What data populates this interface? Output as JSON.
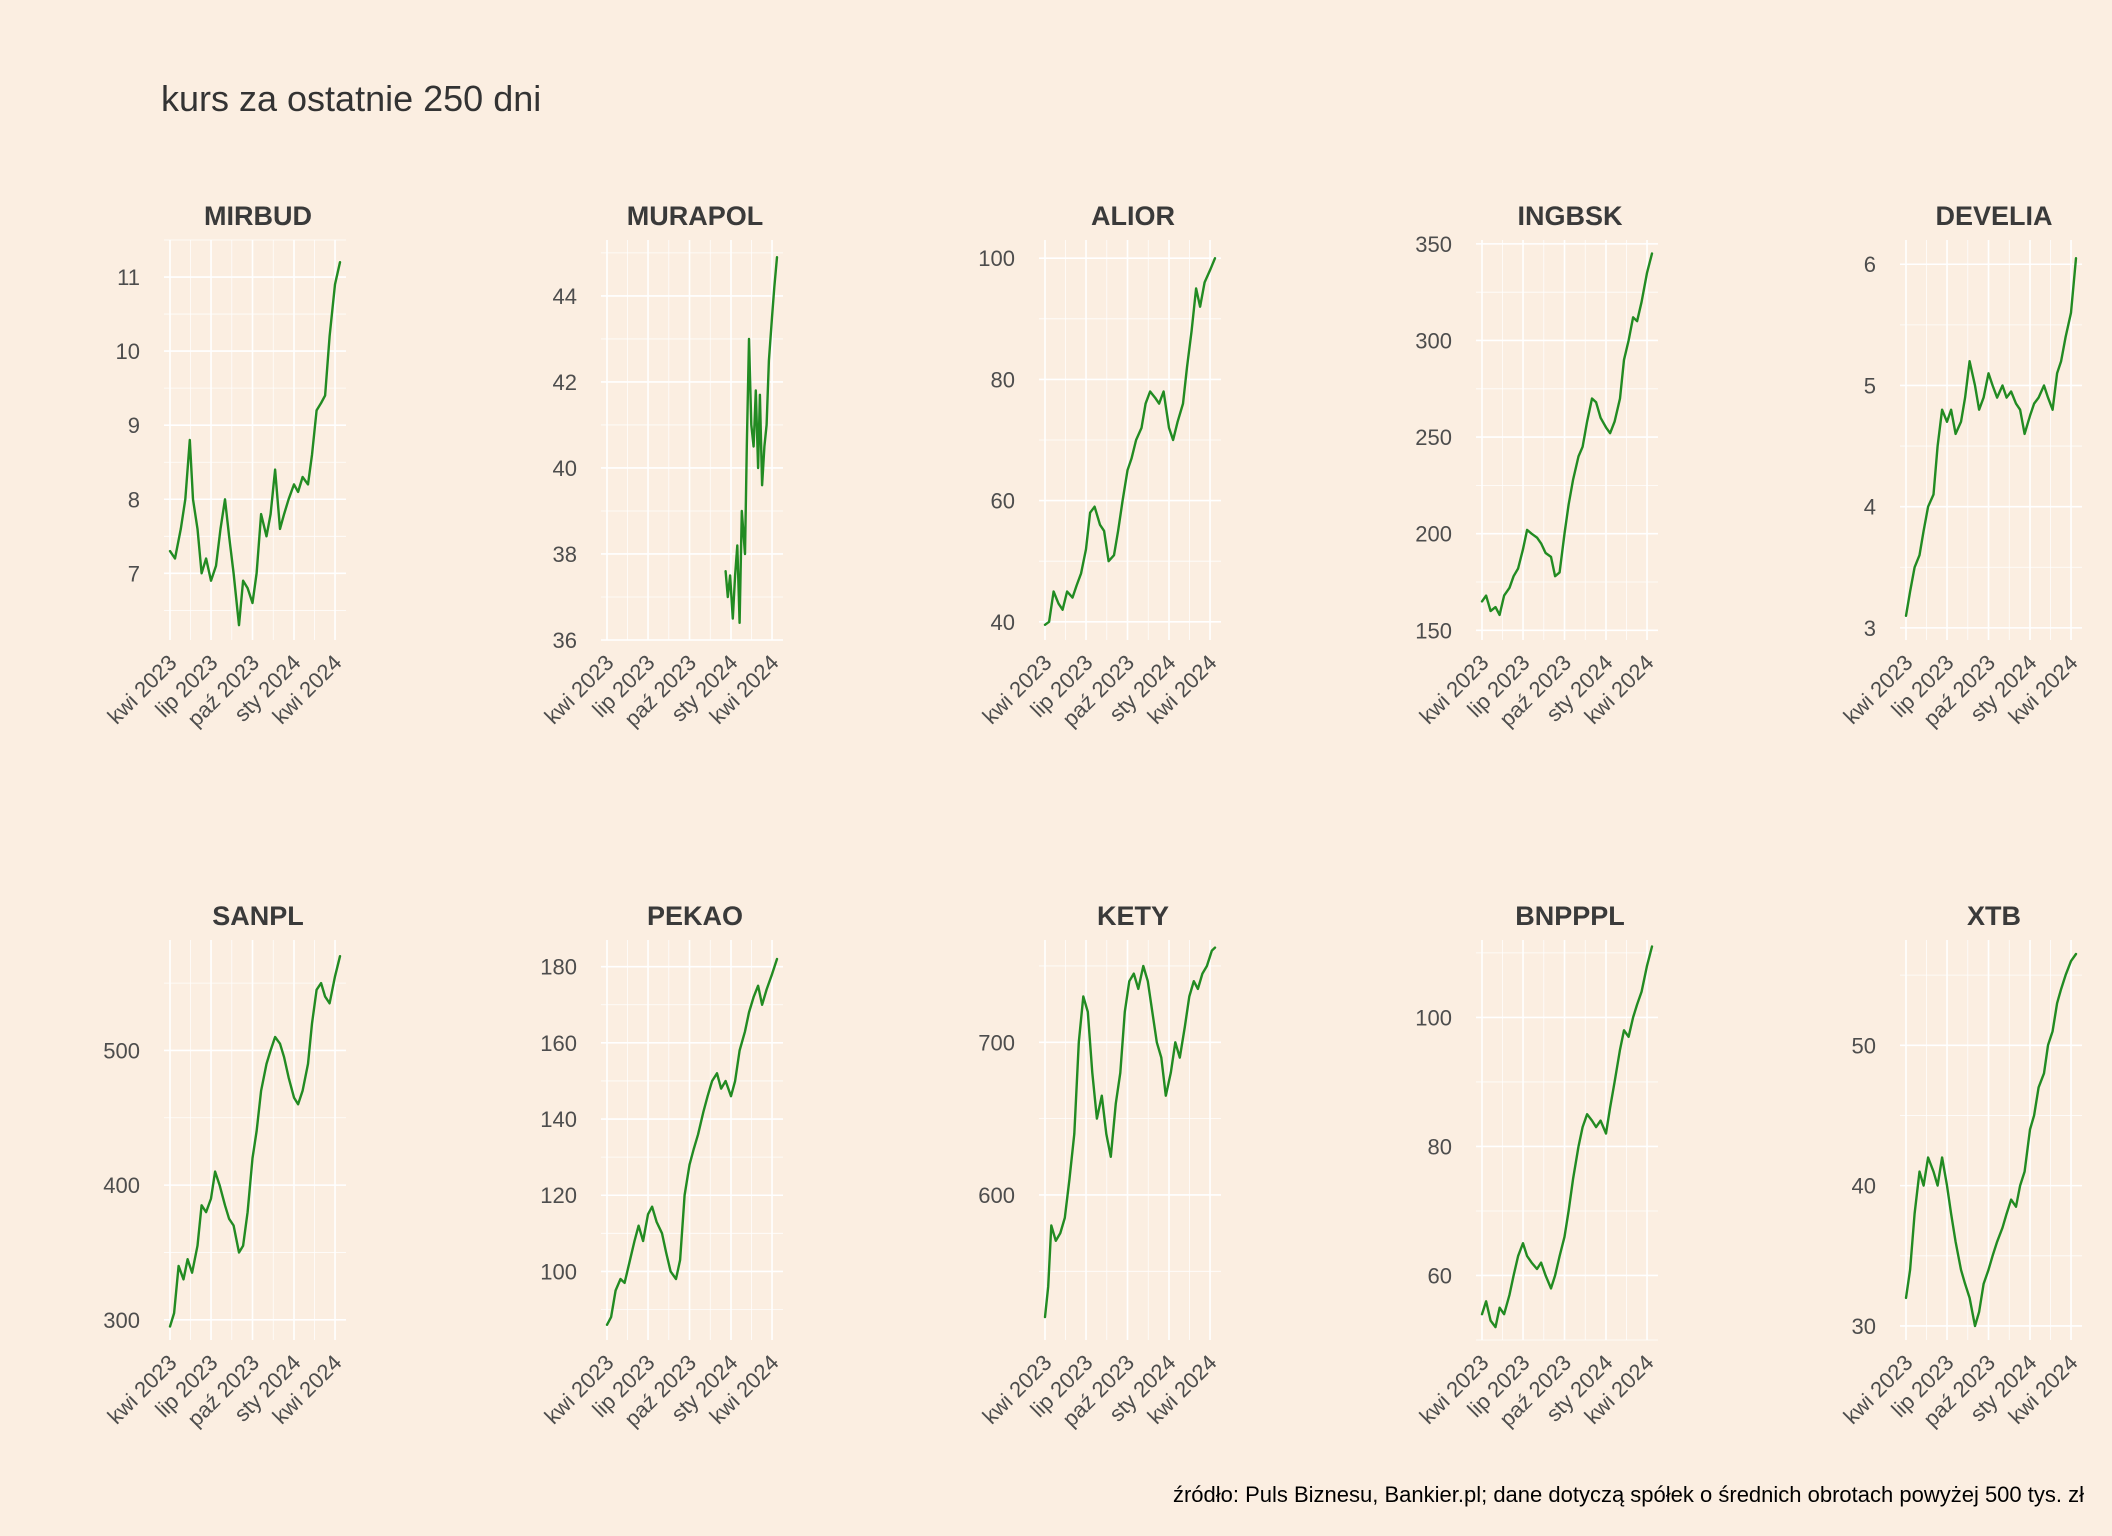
{
  "title": "kurs za ostatnie 250 dni",
  "caption": "źródło: Puls Biznesu, Bankier.pl; dane dotyczą spółek o średnich obrotach powyżej 500 tys. zł",
  "line_color": "#228b22",
  "x_tick_labels": [
    "kwi 2023",
    "lip 2023",
    "paź 2023",
    "sty 2024",
    "kwi 2024"
  ],
  "chart_data": [
    {
      "type": "line",
      "title": "MIRBUD",
      "x_range": [
        "2023-04-01",
        "2024-04-12"
      ],
      "ylim": [
        6.1,
        11.5
      ],
      "yticks": [
        7,
        8,
        9,
        10,
        11
      ],
      "x": [
        "2023-04-01",
        "2023-04-12",
        "2023-04-25",
        "2023-05-05",
        "2023-05-15",
        "2023-05-22",
        "2023-06-01",
        "2023-06-10",
        "2023-06-20",
        "2023-07-01",
        "2023-07-12",
        "2023-07-22",
        "2023-08-01",
        "2023-08-10",
        "2023-08-20",
        "2023-09-01",
        "2023-09-10",
        "2023-09-20",
        "2023-10-01",
        "2023-10-10",
        "2023-10-20",
        "2023-11-01",
        "2023-11-10",
        "2023-11-20",
        "2023-12-01",
        "2023-12-10",
        "2023-12-20",
        "2024-01-01",
        "2024-01-10",
        "2024-01-20",
        "2024-02-01",
        "2024-02-10",
        "2024-02-20",
        "2024-03-01",
        "2024-03-10",
        "2024-03-20",
        "2024-04-01",
        "2024-04-12"
      ],
      "values": [
        7.3,
        7.2,
        7.6,
        8.0,
        8.8,
        8.0,
        7.6,
        7.0,
        7.2,
        6.9,
        7.1,
        7.6,
        8.0,
        7.5,
        7.0,
        6.3,
        6.9,
        6.8,
        6.6,
        7.0,
        7.8,
        7.5,
        7.8,
        8.4,
        7.6,
        7.8,
        8.0,
        8.2,
        8.1,
        8.3,
        8.2,
        8.6,
        9.2,
        9.3,
        9.4,
        10.2,
        10.9,
        11.2
      ]
    },
    {
      "type": "line",
      "title": "MURAPOL",
      "x_range": [
        "2023-04-01",
        "2024-04-12"
      ],
      "ylim": [
        36,
        45.3
      ],
      "yticks": [
        36,
        38,
        40,
        42,
        44
      ],
      "x": [
        "2023-12-20",
        "2023-12-25",
        "2023-12-30",
        "2024-01-05",
        "2024-01-10",
        "2024-01-15",
        "2024-01-20",
        "2024-01-25",
        "2024-02-01",
        "2024-02-05",
        "2024-02-10",
        "2024-02-15",
        "2024-02-20",
        "2024-02-25",
        "2024-03-01",
        "2024-03-05",
        "2024-03-10",
        "2024-03-15",
        "2024-03-20",
        "2024-03-25",
        "2024-04-01",
        "2024-04-06",
        "2024-04-12"
      ],
      "values": [
        37.6,
        37.0,
        37.5,
        36.5,
        37.5,
        38.2,
        36.4,
        39.0,
        38.0,
        40.5,
        43.0,
        41.0,
        40.5,
        41.8,
        40.0,
        41.7,
        39.6,
        40.5,
        41.0,
        42.5,
        43.5,
        44.2,
        44.9
      ]
    },
    {
      "type": "line",
      "title": "ALIOR",
      "x_range": [
        "2023-04-01",
        "2024-04-12"
      ],
      "ylim": [
        37,
        103
      ],
      "yticks": [
        40,
        60,
        80,
        100
      ],
      "x": [
        "2023-04-01",
        "2023-04-10",
        "2023-04-20",
        "2023-05-01",
        "2023-05-10",
        "2023-05-20",
        "2023-06-01",
        "2023-06-10",
        "2023-06-20",
        "2023-07-01",
        "2023-07-10",
        "2023-07-20",
        "2023-08-01",
        "2023-08-10",
        "2023-08-20",
        "2023-09-01",
        "2023-09-10",
        "2023-09-20",
        "2023-10-01",
        "2023-10-10",
        "2023-10-20",
        "2023-11-01",
        "2023-11-10",
        "2023-11-20",
        "2023-12-01",
        "2023-12-10",
        "2023-12-20",
        "2024-01-01",
        "2024-01-10",
        "2024-01-20",
        "2024-02-01",
        "2024-02-10",
        "2024-02-20",
        "2024-03-01",
        "2024-03-10",
        "2024-03-20",
        "2024-04-01",
        "2024-04-12"
      ],
      "values": [
        39.5,
        40,
        45,
        43,
        42,
        45,
        44,
        46,
        48,
        52,
        58,
        59,
        56,
        55,
        50,
        51,
        55,
        60,
        65,
        67,
        70,
        72,
        76,
        78,
        77,
        76,
        78,
        72,
        70,
        73,
        76,
        82,
        88,
        95,
        92,
        96,
        98,
        100
      ]
    },
    {
      "type": "line",
      "title": "INGBSK",
      "x_range": [
        "2023-04-01",
        "2024-04-12"
      ],
      "ylim": [
        145,
        352
      ],
      "yticks": [
        150,
        200,
        250,
        300,
        350
      ],
      "x": [
        "2023-04-01",
        "2023-04-10",
        "2023-04-20",
        "2023-05-01",
        "2023-05-10",
        "2023-05-20",
        "2023-06-01",
        "2023-06-10",
        "2023-06-20",
        "2023-07-01",
        "2023-07-10",
        "2023-07-20",
        "2023-08-01",
        "2023-08-10",
        "2023-08-20",
        "2023-09-01",
        "2023-09-10",
        "2023-09-20",
        "2023-10-01",
        "2023-10-10",
        "2023-10-20",
        "2023-11-01",
        "2023-11-10",
        "2023-11-20",
        "2023-12-01",
        "2023-12-10",
        "2023-12-20",
        "2024-01-01",
        "2024-01-10",
        "2024-01-20",
        "2024-02-01",
        "2024-02-10",
        "2024-02-20",
        "2024-03-01",
        "2024-03-10",
        "2024-03-20",
        "2024-04-01",
        "2024-04-12"
      ],
      "values": [
        165,
        168,
        160,
        162,
        158,
        168,
        172,
        178,
        182,
        192,
        202,
        200,
        198,
        195,
        190,
        188,
        178,
        180,
        200,
        215,
        228,
        240,
        245,
        258,
        270,
        268,
        260,
        255,
        252,
        258,
        270,
        290,
        300,
        312,
        310,
        320,
        335,
        345
      ]
    },
    {
      "type": "line",
      "title": "DEVELIA",
      "x_range": [
        "2023-04-01",
        "2024-04-12"
      ],
      "ylim": [
        2.9,
        6.2
      ],
      "yticks": [
        3,
        4,
        5,
        6
      ],
      "x": [
        "2023-04-01",
        "2023-04-10",
        "2023-04-20",
        "2023-05-01",
        "2023-05-10",
        "2023-05-20",
        "2023-06-01",
        "2023-06-10",
        "2023-06-20",
        "2023-07-01",
        "2023-07-10",
        "2023-07-20",
        "2023-08-01",
        "2023-08-10",
        "2023-08-20",
        "2023-09-01",
        "2023-09-10",
        "2023-09-20",
        "2023-10-01",
        "2023-10-10",
        "2023-10-20",
        "2023-11-01",
        "2023-11-10",
        "2023-11-20",
        "2023-12-01",
        "2023-12-10",
        "2023-12-20",
        "2024-01-01",
        "2024-01-10",
        "2024-01-20",
        "2024-02-01",
        "2024-02-10",
        "2024-02-20",
        "2024-03-01",
        "2024-03-10",
        "2024-03-20",
        "2024-04-01",
        "2024-04-12"
      ],
      "values": [
        3.1,
        3.3,
        3.5,
        3.6,
        3.8,
        4.0,
        4.1,
        4.5,
        4.8,
        4.7,
        4.8,
        4.6,
        4.7,
        4.9,
        5.2,
        5.0,
        4.8,
        4.9,
        5.1,
        5.0,
        4.9,
        5.0,
        4.9,
        4.95,
        4.85,
        4.8,
        4.6,
        4.75,
        4.85,
        4.9,
        5.0,
        4.9,
        4.8,
        5.1,
        5.2,
        5.4,
        5.6,
        6.05
      ]
    },
    {
      "type": "line",
      "title": "SANPL",
      "x_range": [
        "2023-04-01",
        "2024-04-12"
      ],
      "ylim": [
        285,
        582
      ],
      "yticks": [
        300,
        400,
        500
      ],
      "x": [
        "2023-04-01",
        "2023-04-10",
        "2023-04-20",
        "2023-05-01",
        "2023-05-10",
        "2023-05-20",
        "2023-06-01",
        "2023-06-10",
        "2023-06-20",
        "2023-07-01",
        "2023-07-10",
        "2023-07-20",
        "2023-08-01",
        "2023-08-10",
        "2023-08-20",
        "2023-09-01",
        "2023-09-10",
        "2023-09-20",
        "2023-10-01",
        "2023-10-10",
        "2023-10-20",
        "2023-11-01",
        "2023-11-10",
        "2023-11-20",
        "2023-12-01",
        "2023-12-10",
        "2023-12-20",
        "2024-01-01",
        "2024-01-10",
        "2024-01-20",
        "2024-02-01",
        "2024-02-10",
        "2024-02-20",
        "2024-03-01",
        "2024-03-10",
        "2024-03-20",
        "2024-04-01",
        "2024-04-12"
      ],
      "values": [
        295,
        305,
        340,
        330,
        345,
        335,
        355,
        385,
        380,
        390,
        410,
        400,
        385,
        375,
        370,
        350,
        355,
        380,
        420,
        440,
        470,
        490,
        500,
        510,
        505,
        495,
        480,
        465,
        460,
        470,
        490,
        520,
        545,
        550,
        540,
        535,
        555,
        570
      ]
    },
    {
      "type": "line",
      "title": "PEKAO",
      "x_range": [
        "2023-04-01",
        "2024-04-12"
      ],
      "ylim": [
        82,
        187
      ],
      "yticks": [
        100,
        120,
        140,
        160,
        180
      ],
      "x": [
        "2023-04-01",
        "2023-04-10",
        "2023-04-20",
        "2023-05-01",
        "2023-05-10",
        "2023-05-20",
        "2023-06-01",
        "2023-06-10",
        "2023-06-20",
        "2023-07-01",
        "2023-07-10",
        "2023-07-20",
        "2023-08-01",
        "2023-08-10",
        "2023-08-20",
        "2023-09-01",
        "2023-09-10",
        "2023-09-20",
        "2023-10-01",
        "2023-10-10",
        "2023-10-20",
        "2023-11-01",
        "2023-11-10",
        "2023-11-20",
        "2023-12-01",
        "2023-12-10",
        "2023-12-20",
        "2024-01-01",
        "2024-01-10",
        "2024-01-20",
        "2024-02-01",
        "2024-02-10",
        "2024-02-20",
        "2024-03-01",
        "2024-03-10",
        "2024-03-20",
        "2024-04-01",
        "2024-04-12"
      ],
      "values": [
        86,
        88,
        95,
        98,
        97,
        102,
        108,
        112,
        108,
        115,
        117,
        113,
        110,
        105,
        100,
        98,
        103,
        120,
        128,
        132,
        136,
        142,
        146,
        150,
        152,
        148,
        150,
        146,
        150,
        158,
        163,
        168,
        172,
        175,
        170,
        174,
        178,
        182
      ]
    },
    {
      "type": "line",
      "title": "KETY",
      "x_range": [
        "2023-04-01",
        "2024-04-12"
      ],
      "ylim": [
        505,
        767
      ],
      "yticks": [
        600,
        700
      ],
      "x": [
        "2023-04-01",
        "2023-04-08",
        "2023-04-15",
        "2023-04-25",
        "2023-05-05",
        "2023-05-15",
        "2023-05-25",
        "2023-06-05",
        "2023-06-15",
        "2023-06-25",
        "2023-07-05",
        "2023-07-15",
        "2023-07-25",
        "2023-08-05",
        "2023-08-15",
        "2023-08-25",
        "2023-09-05",
        "2023-09-15",
        "2023-09-25",
        "2023-10-05",
        "2023-10-15",
        "2023-10-25",
        "2023-11-05",
        "2023-11-15",
        "2023-11-25",
        "2023-12-05",
        "2023-12-15",
        "2023-12-25",
        "2024-01-05",
        "2024-01-15",
        "2024-01-25",
        "2024-02-05",
        "2024-02-15",
        "2024-02-25",
        "2024-03-05",
        "2024-03-15",
        "2024-03-25",
        "2024-04-05",
        "2024-04-12"
      ],
      "values": [
        520,
        540,
        580,
        570,
        575,
        585,
        610,
        640,
        700,
        730,
        720,
        680,
        650,
        665,
        640,
        625,
        660,
        680,
        720,
        740,
        745,
        735,
        750,
        740,
        720,
        700,
        690,
        665,
        680,
        700,
        690,
        710,
        730,
        740,
        735,
        745,
        750,
        760,
        762
      ]
    },
    {
      "type": "line",
      "title": "BNPPPL",
      "x_range": [
        "2023-04-01",
        "2024-04-12"
      ],
      "ylim": [
        50,
        112
      ],
      "yticks": [
        60,
        80,
        100
      ],
      "x": [
        "2023-04-01",
        "2023-04-10",
        "2023-04-20",
        "2023-05-01",
        "2023-05-10",
        "2023-05-20",
        "2023-06-01",
        "2023-06-10",
        "2023-06-20",
        "2023-07-01",
        "2023-07-10",
        "2023-07-20",
        "2023-08-01",
        "2023-08-10",
        "2023-08-20",
        "2023-09-01",
        "2023-09-10",
        "2023-09-20",
        "2023-10-01",
        "2023-10-10",
        "2023-10-20",
        "2023-11-01",
        "2023-11-10",
        "2023-11-20",
        "2023-12-01",
        "2023-12-10",
        "2023-12-20",
        "2024-01-01",
        "2024-01-10",
        "2024-01-20",
        "2024-02-01",
        "2024-02-10",
        "2024-02-20",
        "2024-03-01",
        "2024-03-10",
        "2024-03-20",
        "2024-04-01",
        "2024-04-12"
      ],
      "values": [
        54,
        56,
        53,
        52,
        55,
        54,
        57,
        60,
        63,
        65,
        63,
        62,
        61,
        62,
        60,
        58,
        60,
        63,
        66,
        70,
        75,
        80,
        83,
        85,
        84,
        83,
        84,
        82,
        86,
        90,
        95,
        98,
        97,
        100,
        102,
        104,
        108,
        111
      ]
    },
    {
      "type": "line",
      "title": "XTB",
      "x_range": [
        "2023-04-01",
        "2024-04-12"
      ],
      "ylim": [
        29,
        57.5
      ],
      "yticks": [
        30,
        40,
        50
      ],
      "x": [
        "2023-04-01",
        "2023-04-10",
        "2023-04-20",
        "2023-05-01",
        "2023-05-10",
        "2023-05-20",
        "2023-06-01",
        "2023-06-10",
        "2023-06-20",
        "2023-07-01",
        "2023-07-10",
        "2023-07-20",
        "2023-08-01",
        "2023-08-10",
        "2023-08-20",
        "2023-09-01",
        "2023-09-10",
        "2023-09-20",
        "2023-10-01",
        "2023-10-10",
        "2023-10-20",
        "2023-11-01",
        "2023-11-10",
        "2023-11-20",
        "2023-12-01",
        "2023-12-10",
        "2023-12-20",
        "2024-01-01",
        "2024-01-10",
        "2024-01-20",
        "2024-02-01",
        "2024-02-10",
        "2024-02-20",
        "2024-03-01",
        "2024-03-10",
        "2024-03-20",
        "2024-04-01",
        "2024-04-12"
      ],
      "values": [
        32,
        34,
        38,
        41,
        40,
        42,
        41,
        40,
        42,
        40,
        38,
        36,
        34,
        33,
        32,
        30,
        31,
        33,
        34,
        35,
        36,
        37,
        38,
        39,
        38.5,
        40,
        41,
        44,
        45,
        47,
        48,
        50,
        51,
        53,
        54,
        55,
        56,
        56.5
      ]
    }
  ]
}
